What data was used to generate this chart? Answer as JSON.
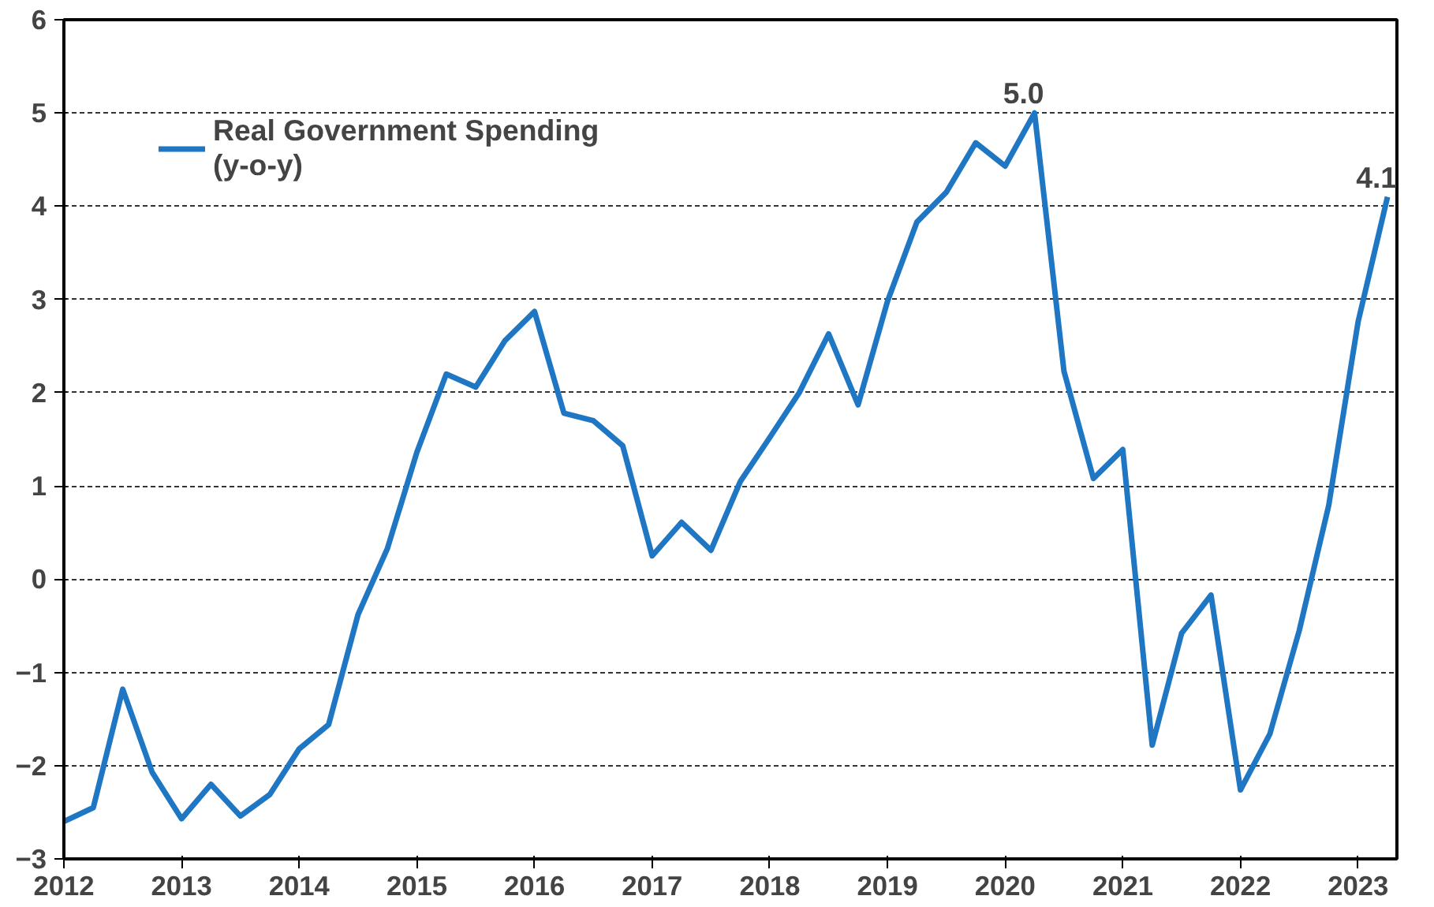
{
  "chart_data": {
    "type": "line",
    "x": [
      2012.0,
      2012.25,
      2012.5,
      2012.75,
      2013.0,
      2013.25,
      2013.5,
      2013.75,
      2014.0,
      2014.25,
      2014.5,
      2014.75,
      2015.0,
      2015.25,
      2015.5,
      2015.75,
      2016.0,
      2016.25,
      2016.5,
      2016.75,
      2017.0,
      2017.25,
      2017.5,
      2017.75,
      2018.0,
      2018.25,
      2018.5,
      2018.75,
      2019.0,
      2019.25,
      2019.5,
      2019.75,
      2020.0,
      2020.25,
      2020.5,
      2020.75,
      2021.0,
      2021.25,
      2021.5,
      2021.75,
      2022.0,
      2022.25,
      2022.5,
      2022.75,
      2023.0,
      2023.25
    ],
    "series": [
      {
        "name": "Real Government Spending\n(y-o-y)",
        "color": "#1f77c4",
        "values": [
          -2.6,
          -2.45,
          -1.18,
          -2.07,
          -2.57,
          -2.2,
          -2.54,
          -2.31,
          -1.82,
          -1.56,
          -0.38,
          0.33,
          1.36,
          2.2,
          2.06,
          2.56,
          2.87,
          1.78,
          1.7,
          1.43,
          0.25,
          0.61,
          0.31,
          1.05,
          1.52,
          2.0,
          2.63,
          1.87,
          2.98,
          3.83,
          4.15,
          4.68,
          4.43,
          5.0,
          2.23,
          1.08,
          1.39,
          -1.78,
          -0.58,
          -0.17,
          -2.26,
          -1.66,
          -0.55,
          0.79,
          2.76,
          4.1
        ]
      }
    ],
    "annotations": [
      {
        "text": "5.0",
        "x": 2020.25,
        "y": 5.0
      },
      {
        "text": "4.1",
        "x": 2023.25,
        "y": 4.1
      }
    ],
    "xlim": [
      2012,
      2023.33
    ],
    "xticks": [
      2012,
      2013,
      2014,
      2015,
      2016,
      2017,
      2018,
      2019,
      2020,
      2021,
      2022,
      2023
    ],
    "ylim": [
      -3,
      6
    ],
    "yticks": [
      -3,
      -2,
      -1,
      0,
      1,
      2,
      3,
      4,
      5,
      6
    ],
    "grid": "y",
    "legend": "top left",
    "line_style": "solid",
    "marker": "none"
  }
}
